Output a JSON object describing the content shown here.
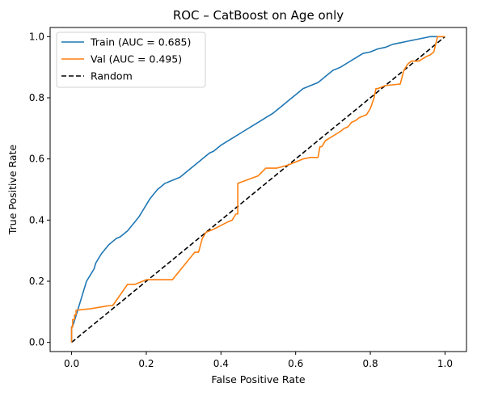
{
  "chart_data": {
    "type": "line",
    "title": "ROC – CatBoost on Age only",
    "xlabel": "False Positive Rate",
    "ylabel": "True Positive Rate",
    "xlim": [
      -0.0575,
      1.0575
    ],
    "ylim": [
      -0.03,
      1.03
    ],
    "xticks": [
      0.0,
      0.2,
      0.4,
      0.6,
      0.8,
      1.0
    ],
    "xtick_labels": [
      "0.0",
      "0.2",
      "0.4",
      "0.6",
      "0.8",
      "1.0"
    ],
    "yticks": [
      0.0,
      0.2,
      0.4,
      0.6,
      0.8,
      1.0
    ],
    "ytick_labels": [
      "0.0",
      "0.2",
      "0.4",
      "0.6",
      "0.8",
      "1.0"
    ],
    "grid": false,
    "legend": "upper-left",
    "series": [
      {
        "name": "Train (AUC = 0.685)",
        "color": "#1f77b4",
        "style": "solid",
        "x": [
          0.0,
          0.0,
          0.005,
          0.01,
          0.015,
          0.02,
          0.025,
          0.03,
          0.035,
          0.04,
          0.05,
          0.06,
          0.065,
          0.07,
          0.08,
          0.09,
          0.1,
          0.11,
          0.12,
          0.13,
          0.14,
          0.15,
          0.16,
          0.17,
          0.18,
          0.19,
          0.2,
          0.21,
          0.22,
          0.23,
          0.24,
          0.25,
          0.26,
          0.27,
          0.28,
          0.29,
          0.3,
          0.32,
          0.33,
          0.34,
          0.35,
          0.36,
          0.37,
          0.38,
          0.4,
          0.42,
          0.44,
          0.46,
          0.48,
          0.5,
          0.52,
          0.54,
          0.56,
          0.58,
          0.6,
          0.62,
          0.64,
          0.66,
          0.68,
          0.7,
          0.72,
          0.74,
          0.76,
          0.78,
          0.8,
          0.82,
          0.84,
          0.86,
          0.88,
          0.9,
          0.92,
          0.94,
          0.96,
          0.98,
          1.0
        ],
        "y": [
          0.0,
          0.05,
          0.06,
          0.08,
          0.1,
          0.12,
          0.14,
          0.16,
          0.18,
          0.2,
          0.22,
          0.24,
          0.26,
          0.27,
          0.29,
          0.305,
          0.32,
          0.33,
          0.34,
          0.345,
          0.355,
          0.365,
          0.38,
          0.395,
          0.41,
          0.43,
          0.45,
          0.47,
          0.485,
          0.5,
          0.51,
          0.52,
          0.525,
          0.53,
          0.535,
          0.54,
          0.55,
          0.57,
          0.58,
          0.59,
          0.6,
          0.61,
          0.62,
          0.625,
          0.645,
          0.66,
          0.675,
          0.69,
          0.705,
          0.72,
          0.735,
          0.75,
          0.77,
          0.79,
          0.81,
          0.83,
          0.84,
          0.85,
          0.87,
          0.89,
          0.9,
          0.915,
          0.93,
          0.945,
          0.95,
          0.96,
          0.965,
          0.975,
          0.98,
          0.985,
          0.99,
          0.995,
          1.0,
          1.0,
          1.0
        ]
      },
      {
        "name": "Val (AUC = 0.495)",
        "color": "#ff7f0e",
        "style": "solid",
        "x": [
          0.0,
          0.0,
          0.003,
          0.003,
          0.008,
          0.008,
          0.012,
          0.012,
          0.05,
          0.1,
          0.11,
          0.15,
          0.17,
          0.2,
          0.27,
          0.33,
          0.34,
          0.35,
          0.36,
          0.38,
          0.42,
          0.43,
          0.44,
          0.445,
          0.445,
          0.5,
          0.52,
          0.55,
          0.58,
          0.62,
          0.64,
          0.66,
          0.665,
          0.67,
          0.68,
          0.72,
          0.73,
          0.74,
          0.75,
          0.76,
          0.77,
          0.78,
          0.79,
          0.8,
          0.81,
          0.815,
          0.82,
          0.84,
          0.88,
          0.89,
          0.9,
          0.91,
          0.93,
          0.95,
          0.96,
          0.97,
          0.98,
          0.985,
          1.0
        ],
        "y": [
          0.0,
          0.05,
          0.05,
          0.075,
          0.075,
          0.09,
          0.09,
          0.105,
          0.11,
          0.12,
          0.12,
          0.19,
          0.19,
          0.205,
          0.205,
          0.295,
          0.295,
          0.34,
          0.36,
          0.37,
          0.395,
          0.4,
          0.42,
          0.42,
          0.52,
          0.545,
          0.57,
          0.57,
          0.58,
          0.6,
          0.605,
          0.605,
          0.64,
          0.64,
          0.66,
          0.69,
          0.7,
          0.705,
          0.72,
          0.725,
          0.735,
          0.74,
          0.745,
          0.765,
          0.8,
          0.83,
          0.83,
          0.84,
          0.845,
          0.89,
          0.91,
          0.92,
          0.92,
          0.935,
          0.94,
          0.95,
          1.0,
          1.0,
          1.0
        ]
      },
      {
        "name": "Random",
        "color": "#000000",
        "style": "dashed",
        "x": [
          0.0,
          1.0
        ],
        "y": [
          0.0,
          1.0
        ]
      }
    ]
  }
}
